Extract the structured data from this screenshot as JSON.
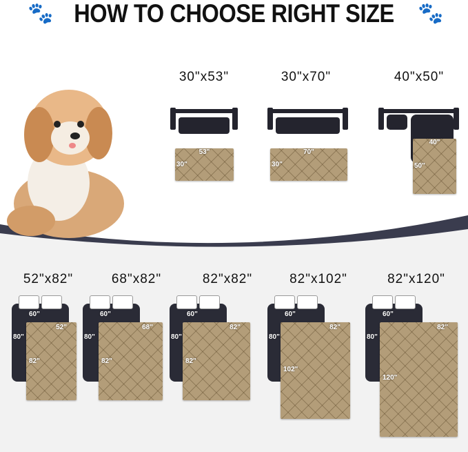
{
  "title": "HOW TO CHOOSE RIGHT SIZE",
  "icons": {
    "left": "paw-icon",
    "right": "paw-icon"
  },
  "colors": {
    "mat": "#b39d79",
    "furniture": "#24242e",
    "band": "#3a3c4e",
    "background_lower": "#f2f2f2"
  },
  "sofa_sizes": [
    {
      "label": "30\"x53\"",
      "width": "53\"",
      "height": "30\""
    },
    {
      "label": "30\"x70\"",
      "width": "70\"",
      "height": "30\""
    },
    {
      "label": "40\"x50\"",
      "width": "40\"",
      "height": "50\""
    }
  ],
  "bed_sizes": [
    {
      "label": "52\"x82\"",
      "bed_width": "60\"",
      "bed_length": "80\"",
      "width": "52\"",
      "height": "82\""
    },
    {
      "label": "68\"x82\"",
      "bed_width": "60\"",
      "bed_length": "80\"",
      "width": "68\"",
      "height": "82\""
    },
    {
      "label": "82\"x82\"",
      "bed_width": "60\"",
      "bed_length": "80\"",
      "width": "82\"",
      "height": "82\""
    },
    {
      "label": "82\"x102\"",
      "bed_width": "60\"",
      "bed_length": "80\"",
      "width": "82\"",
      "height": "102\""
    },
    {
      "label": "82\"x120\"",
      "bed_width": "60\"",
      "bed_length": "80\"",
      "width": "82\"",
      "height": "120\""
    }
  ]
}
